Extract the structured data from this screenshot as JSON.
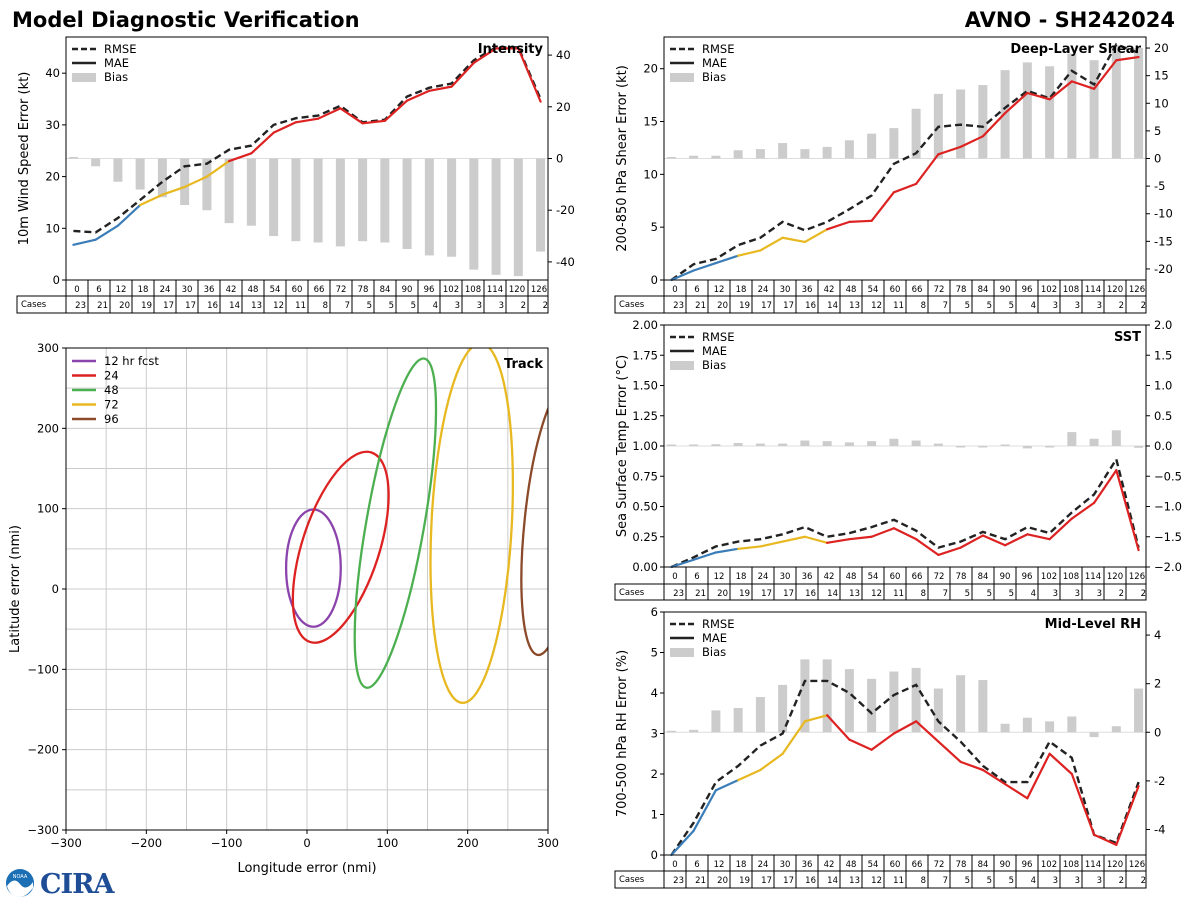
{
  "header": {
    "title": "Model Diagnostic Verification",
    "storm_id": "AVNO - SH242024"
  },
  "logo": {
    "text": "CIRA",
    "noaa_text": "NOAA"
  },
  "table": {
    "cases_label": "Cases",
    "hours": [
      "0",
      "6",
      "12",
      "18",
      "24",
      "30",
      "36",
      "42",
      "48",
      "54",
      "60",
      "66",
      "72",
      "78",
      "84",
      "90",
      "96",
      "102",
      "108",
      "114",
      "120",
      "126"
    ],
    "cases": [
      "23",
      "21",
      "20",
      "19",
      "17",
      "17",
      "16",
      "14",
      "13",
      "12",
      "11",
      "8",
      "7",
      "5",
      "5",
      "5",
      "4",
      "3",
      "3",
      "3",
      "2",
      "2"
    ]
  },
  "legend": {
    "rmse": "RMSE",
    "mae": "MAE",
    "bias": "Bias"
  },
  "colors": {
    "early": "#3a7db8",
    "mid": "#e8b820",
    "late": "#dd2222",
    "rmse": "#222222",
    "bias": "#cccccc"
  },
  "chart_data": [
    {
      "id": "intensity",
      "type": "line",
      "title": "Intensity",
      "ylabel": "10m Wind Speed Error (kt)",
      "ylim": [
        0,
        47
      ],
      "yticks": [
        0,
        10,
        20,
        30,
        40
      ],
      "y2lim": [
        -47,
        47
      ],
      "y2ticks": [
        -40,
        -20,
        0,
        20,
        40
      ],
      "x": [
        0,
        6,
        12,
        18,
        24,
        30,
        36,
        42,
        48,
        54,
        60,
        66,
        72,
        78,
        84,
        90,
        96,
        102,
        108,
        114,
        120,
        126
      ],
      "rmse": [
        9.5,
        9.2,
        12,
        15.5,
        19,
        22,
        22.5,
        25.2,
        26,
        30,
        31.3,
        31.8,
        33.7,
        30.5,
        31,
        35.5,
        37.2,
        38,
        42.5,
        45,
        45,
        35
      ],
      "mae": [
        6.8,
        7.8,
        10.5,
        14.5,
        16.5,
        18,
        20,
        23,
        24.5,
        28.5,
        30.5,
        31.2,
        33.2,
        30.3,
        30.8,
        34.7,
        36.6,
        37.4,
        42,
        44.8,
        44.8,
        34.5
      ],
      "bias": [
        0,
        -3,
        -9,
        -12,
        -15,
        -18,
        -20,
        -25,
        -26,
        -30,
        -32,
        -32.5,
        -34,
        -32,
        -32.5,
        -35,
        -37.5,
        -38,
        -43,
        -45,
        -45.5,
        -36
      ]
    },
    {
      "id": "shear",
      "type": "line",
      "title": "Deep-Layer Shear",
      "ylabel": "200-850 hPa Shear Error (kt)",
      "ylim": [
        0,
        23
      ],
      "yticks": [
        0,
        5,
        10,
        15,
        20
      ],
      "y2lim": [
        -22,
        22
      ],
      "y2ticks": [
        -20,
        -15,
        -10,
        -5,
        0,
        5,
        10,
        15,
        20
      ],
      "x": [
        0,
        6,
        12,
        18,
        24,
        30,
        36,
        42,
        48,
        54,
        60,
        66,
        72,
        78,
        84,
        90,
        96,
        102,
        108,
        114,
        120,
        126
      ],
      "rmse": [
        0,
        1.5,
        2,
        3.3,
        4,
        5.5,
        4.7,
        5.5,
        6.7,
        8,
        11,
        12,
        14.5,
        14.7,
        14.5,
        16.3,
        17.9,
        17.2,
        19.8,
        18.5,
        22.3,
        21.5
      ],
      "mae": [
        0,
        0.9,
        1.6,
        2.3,
        2.8,
        4,
        3.6,
        4.8,
        5.5,
        5.6,
        8.3,
        9.1,
        11.9,
        12.6,
        13.6,
        15.8,
        17.7,
        17.1,
        18.8,
        18.1,
        20.8,
        21.1
      ],
      "bias": [
        0,
        0.5,
        0.5,
        1.5,
        1.7,
        2.8,
        1.7,
        2.1,
        3.3,
        4.5,
        5.5,
        9,
        11.7,
        12.5,
        13.3,
        16,
        17.4,
        16.7,
        19,
        17.8,
        20.5,
        20
      ]
    },
    {
      "id": "sst",
      "type": "line",
      "title": "SST",
      "ylabel": "Sea Surface Temp Error (°C)",
      "ylim": [
        0,
        2
      ],
      "yticks": [
        "0.00",
        "0.25",
        "0.50",
        "0.75",
        "1.00",
        "1.25",
        "1.50",
        "1.75",
        "2.00"
      ],
      "y2lim": [
        -2,
        2
      ],
      "y2ticks": [
        "−2.0",
        "−1.5",
        "−1.0",
        "−0.5",
        "0.0",
        "0.5",
        "1.0",
        "1.5",
        "2.0"
      ],
      "x": [
        0,
        6,
        12,
        18,
        24,
        30,
        36,
        42,
        48,
        54,
        60,
        66,
        72,
        78,
        84,
        90,
        96,
        102,
        108,
        114,
        120,
        126
      ],
      "rmse": [
        0,
        0.08,
        0.17,
        0.21,
        0.23,
        0.27,
        0.33,
        0.25,
        0.28,
        0.33,
        0.39,
        0.3,
        0.16,
        0.21,
        0.29,
        0.23,
        0.33,
        0.28,
        0.45,
        0.6,
        0.89,
        0.16
      ],
      "mae": [
        0,
        0.06,
        0.12,
        0.15,
        0.17,
        0.21,
        0.25,
        0.2,
        0.23,
        0.25,
        0.32,
        0.23,
        0.1,
        0.16,
        0.26,
        0.18,
        0.27,
        0.23,
        0.4,
        0.53,
        0.8,
        0.14
      ],
      "bias": [
        0,
        0.01,
        0.03,
        0.05,
        0.04,
        0.04,
        0.09,
        0.08,
        0.06,
        0.08,
        0.12,
        0.09,
        0.04,
        -0.02,
        -0.01,
        0.02,
        -0.04,
        -0.02,
        0.23,
        0.12,
        0.26,
        -0.03
      ]
    },
    {
      "id": "rh",
      "type": "line",
      "title": "Mid-Level RH",
      "ylabel": "700-500 hPa RH Error (%)",
      "ylim": [
        0,
        6
      ],
      "yticks": [
        0,
        1,
        2,
        3,
        4,
        5,
        6
      ],
      "y2lim": [
        -5.05,
        4.95
      ],
      "y2ticks": [
        -4,
        -2,
        0,
        2,
        4
      ],
      "x": [
        0,
        6,
        12,
        18,
        24,
        30,
        36,
        42,
        48,
        54,
        60,
        66,
        72,
        78,
        84,
        90,
        96,
        102,
        108,
        114,
        120,
        126
      ],
      "rmse": [
        0,
        0.8,
        1.8,
        2.2,
        2.7,
        3,
        4.3,
        4.3,
        4,
        3.5,
        3.95,
        4.2,
        3.3,
        2.8,
        2.2,
        1.8,
        1.8,
        2.8,
        2.4,
        0.5,
        0.3,
        1.8
      ],
      "mae": [
        0,
        0.6,
        1.6,
        1.85,
        2.1,
        2.5,
        3.3,
        3.45,
        2.85,
        2.6,
        3,
        3.3,
        2.8,
        2.3,
        2.1,
        1.75,
        1.4,
        2.5,
        2,
        0.5,
        0.25,
        1.7
      ],
      "bias": [
        0,
        0.1,
        0.9,
        1,
        1.45,
        1.95,
        3,
        3,
        2.6,
        2.2,
        2.5,
        2.65,
        1.8,
        2.35,
        2.15,
        0.35,
        0.6,
        0.45,
        0.65,
        -0.2,
        0.25,
        1.8
      ]
    },
    {
      "id": "track",
      "type": "ellipse",
      "title": "Track",
      "xlabel": "Longitude error (nmi)",
      "ylabel": "Latitude error (nmi)",
      "xlim": [
        -300,
        300
      ],
      "ylim": [
        -300,
        300
      ],
      "xticks": [
        "−300",
        "−200",
        "−100",
        "0",
        "100",
        "200",
        "300"
      ],
      "yticks": [
        "−300",
        "−200",
        "−100",
        "0",
        "100",
        "200",
        "300"
      ],
      "series": [
        {
          "name": "12 hr fcst",
          "color": "#8b44ac",
          "cx": 8,
          "cy": 26,
          "rx": 34,
          "ry": 73,
          "angle": 0
        },
        {
          "name": "24",
          "color": "#dd2222",
          "cx": 42,
          "cy": 52,
          "rx": 48,
          "ry": 124,
          "angle": 18
        },
        {
          "name": "48",
          "color": "#4caf50",
          "cx": 110,
          "cy": 82,
          "rx": 36,
          "ry": 208,
          "angle": 10
        },
        {
          "name": "72",
          "color": "#e8b820",
          "cx": 205,
          "cy": 82,
          "rx": 50,
          "ry": 224,
          "angle": 3
        },
        {
          "name": "96",
          "color": "#8b4a2a",
          "cx": 305,
          "cy": 85,
          "rx": 34,
          "ry": 168,
          "angle": 6
        }
      ]
    }
  ]
}
